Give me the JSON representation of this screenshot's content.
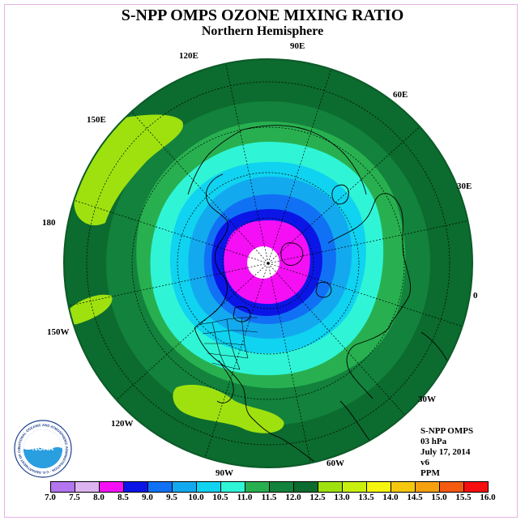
{
  "header": {
    "title": "S-NPP OMPS OZONE MIXING RATIO",
    "subtitle": "Northern Hemisphere"
  },
  "map": {
    "longitude_labels": [
      "90E",
      "60E",
      "30E",
      "0",
      "30W",
      "60W",
      "90W",
      "120W",
      "150W",
      "180",
      "150E",
      "120E"
    ],
    "colors": {
      "ocean_border": "#1b7a36",
      "level_11_5": "#12823c",
      "level_12_0": "#0c6b2e",
      "level_12_5": "#9fe10f",
      "level_11_0": "#28b050",
      "level_10_5": "#2ff5d6",
      "level_10_0": "#0fd3f0",
      "level_9_5": "#13a9ef",
      "level_9_0": "#1171f5",
      "level_8_5": "#0b16e6",
      "level_8_0": "#f50ff5",
      "polar_hole": "#ffffff"
    }
  },
  "info": {
    "instrument": "S-NPP OMPS",
    "pressure": "03 hPa",
    "date": "July 17, 2014",
    "version": "v6",
    "units": "PPM"
  },
  "legend": {
    "labels": [
      "7.0",
      "7.5",
      "8.0",
      "8.5",
      "9.0",
      "9.5",
      "10.0",
      "10.5",
      "11.0",
      "11.5",
      "12.0",
      "12.5",
      "13.0",
      "13.5",
      "14.0",
      "14.5",
      "15.0",
      "15.5",
      "16.0"
    ],
    "colors": [
      "#b375f0",
      "#dcb4f0",
      "#f50ff5",
      "#0b16e6",
      "#1171f5",
      "#13a9ef",
      "#0fd3f0",
      "#2ff5d6",
      "#28b050",
      "#12823c",
      "#0c6b2e",
      "#9fe10f",
      "#c8f00f",
      "#f5f50f",
      "#f5c80f",
      "#f5a00f",
      "#f55a0f",
      "#f50f0f",
      "#8b4b2e"
    ]
  },
  "logo": {
    "text": "NOAA",
    "ring_text": "NATIONAL OCEANIC AND ATMOSPHERIC ADMINISTRATION · U.S. DEPARTMENT OF COMMERCE"
  }
}
